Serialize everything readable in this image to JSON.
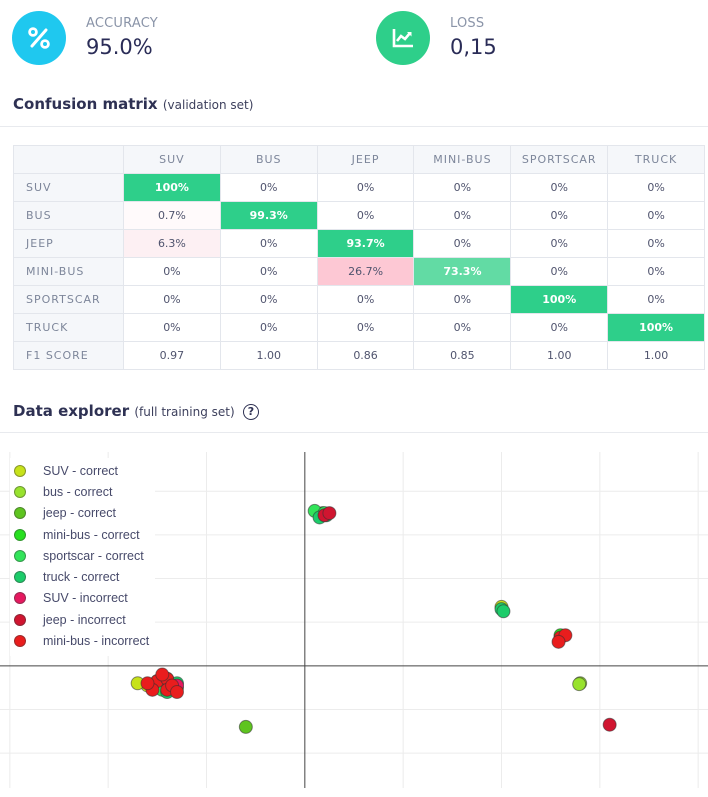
{
  "kpis": {
    "accuracy": {
      "label": "ACCURACY",
      "value": "95.0%",
      "icon": "percent-icon",
      "color": "#1fc8ef"
    },
    "loss": {
      "label": "LOSS",
      "value": "0,15",
      "icon": "line-chart-icon",
      "color": "#2ecf8a"
    }
  },
  "confusion": {
    "title": "Confusion matrix",
    "subtitle": "(validation set)",
    "columns": [
      "SUV",
      "BUS",
      "JEEP",
      "MINI-BUS",
      "SPORTSCAR",
      "TRUCK"
    ],
    "rows": [
      {
        "label": "SUV",
        "cells": [
          "100%",
          "0%",
          "0%",
          "0%",
          "0%",
          "0%"
        ]
      },
      {
        "label": "BUS",
        "cells": [
          "0.7%",
          "99.3%",
          "0%",
          "0%",
          "0%",
          "0%"
        ]
      },
      {
        "label": "JEEP",
        "cells": [
          "6.3%",
          "0%",
          "93.7%",
          "0%",
          "0%",
          "0%"
        ]
      },
      {
        "label": "MINI-BUS",
        "cells": [
          "0%",
          "0%",
          "26.7%",
          "73.3%",
          "0%",
          "0%"
        ]
      },
      {
        "label": "SPORTSCAR",
        "cells": [
          "0%",
          "0%",
          "0%",
          "0%",
          "100%",
          "0%"
        ]
      },
      {
        "label": "TRUCK",
        "cells": [
          "0%",
          "0%",
          "0%",
          "0%",
          "0%",
          "100%"
        ]
      }
    ],
    "f1": {
      "label": "F1 SCORE",
      "cells": [
        "0.97",
        "1.00",
        "0.86",
        "0.85",
        "1.00",
        "1.00"
      ]
    },
    "colors": {
      "correct": "#2ecf8a",
      "correct_light": "#62dba4",
      "error": "#fdc8d4",
      "error_light": "#fdf0f3"
    }
  },
  "explorer": {
    "title": "Data explorer",
    "subtitle": "(full training set)",
    "help_icon": "question-circle-icon",
    "legend": [
      {
        "label": "SUV - correct",
        "color": "#c7e21a"
      },
      {
        "label": "bus - correct",
        "color": "#98e22e"
      },
      {
        "label": "jeep - correct",
        "color": "#5ec41f"
      },
      {
        "label": "mini-bus - correct",
        "color": "#27e01f"
      },
      {
        "label": "sportscar - correct",
        "color": "#32e45a"
      },
      {
        "label": "truck - correct",
        "color": "#1ccc6a"
      },
      {
        "label": "SUV - incorrect",
        "color": "#e5195f"
      },
      {
        "label": "jeep - incorrect",
        "color": "#d01530"
      },
      {
        "label": "mini-bus - incorrect",
        "color": "#e91d1d"
      }
    ]
  },
  "chart_data": {
    "type": "scatter",
    "title": "Data explorer (full training set)",
    "xlabel": "",
    "ylabel": "",
    "xlim": [
      -3.1,
      4.1
    ],
    "ylim": [
      -2.8,
      4.9
    ],
    "grid": true,
    "legend_position": "top-left",
    "series": [
      {
        "name": "SUV - correct",
        "points": [
          [
            -1.6,
            -0.45
          ],
          [
            2.0,
            1.35
          ],
          [
            -1.7,
            -0.4
          ]
        ]
      },
      {
        "name": "bus - correct",
        "points": [
          [
            2.8,
            -0.4
          ],
          [
            2.79,
            -0.42
          ],
          [
            -1.5,
            -0.5
          ]
        ]
      },
      {
        "name": "jeep - correct",
        "points": [
          [
            -0.6,
            -1.4
          ],
          [
            -1.5,
            -0.35
          ],
          [
            -1.3,
            -0.5
          ]
        ]
      },
      {
        "name": "mini-bus - correct",
        "points": [
          [
            0.18,
            3.5
          ],
          [
            2.6,
            0.7
          ],
          [
            -1.4,
            -0.3
          ]
        ]
      },
      {
        "name": "sportscar - correct",
        "points": [
          [
            0.1,
            3.55
          ],
          [
            0.2,
            3.5
          ],
          [
            -1.45,
            -0.55
          ]
        ]
      },
      {
        "name": "truck - correct",
        "points": [
          [
            2.0,
            1.3
          ],
          [
            2.02,
            1.25
          ],
          [
            -1.3,
            -0.4
          ],
          [
            -1.4,
            -0.6
          ],
          [
            0.22,
            3.45
          ],
          [
            0.15,
            3.4
          ]
        ]
      },
      {
        "name": "SUV - incorrect",
        "points": [
          [
            -1.3,
            -0.45
          ]
        ]
      },
      {
        "name": "jeep - incorrect",
        "points": [
          [
            3.1,
            -1.35
          ],
          [
            0.2,
            3.45
          ],
          [
            0.25,
            3.5
          ]
        ]
      },
      {
        "name": "mini-bus - incorrect",
        "points": [
          [
            2.6,
            0.65
          ],
          [
            2.65,
            0.7
          ],
          [
            2.58,
            0.55
          ],
          [
            -1.5,
            -0.35
          ],
          [
            -1.4,
            -0.3
          ],
          [
            -1.55,
            -0.55
          ],
          [
            -1.4,
            -0.55
          ],
          [
            -1.35,
            -0.45
          ],
          [
            -1.45,
            -0.2
          ],
          [
            -1.3,
            -0.6
          ],
          [
            -1.6,
            -0.4
          ]
        ]
      }
    ]
  }
}
